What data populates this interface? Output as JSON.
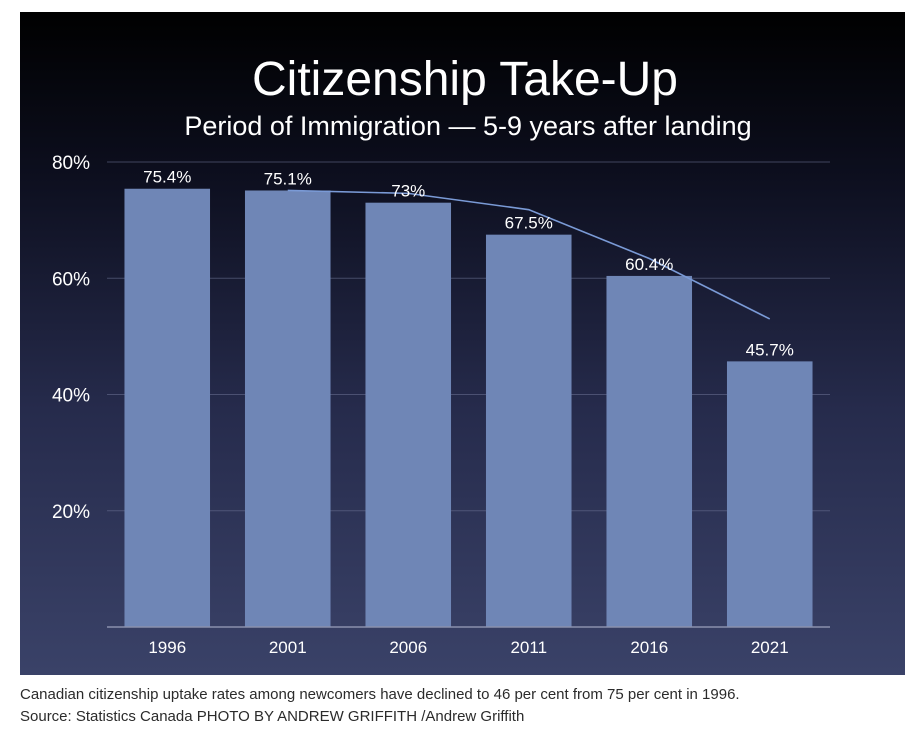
{
  "chart_data": {
    "type": "bar",
    "title": "Citizenship Take-Up",
    "subtitle": "Period of Immigration — 5-9 years after landing",
    "categories": [
      "1996",
      "2001",
      "2006",
      "2011",
      "2016",
      "2021"
    ],
    "values": [
      75.4,
      75.1,
      73,
      67.5,
      60.4,
      45.7
    ],
    "value_labels": [
      "75.4%",
      "75.1%",
      "73%",
      "67.5%",
      "60.4%",
      "45.7%"
    ],
    "ylim": [
      0,
      80
    ],
    "yticks": [
      20,
      40,
      60,
      80
    ],
    "ytick_labels": [
      "20%",
      "40%",
      "60%",
      "80%"
    ],
    "grid": true,
    "trendline": {
      "x_start_category": "2001",
      "x_end_category": "2021",
      "y_values": [
        75.1,
        74.6,
        71.8,
        63.4,
        53.0
      ]
    },
    "colors": {
      "bar": "#6f86b6",
      "trend": "#7a9ad6"
    }
  },
  "caption": {
    "line1": "Canadian citizenship uptake rates among newcomers have declined to 46 per cent from 75 per cent in 1996.",
    "line2": "Source: Statistics Canada PHOTO BY ANDREW GRIFFITH /Andrew Griffith"
  }
}
